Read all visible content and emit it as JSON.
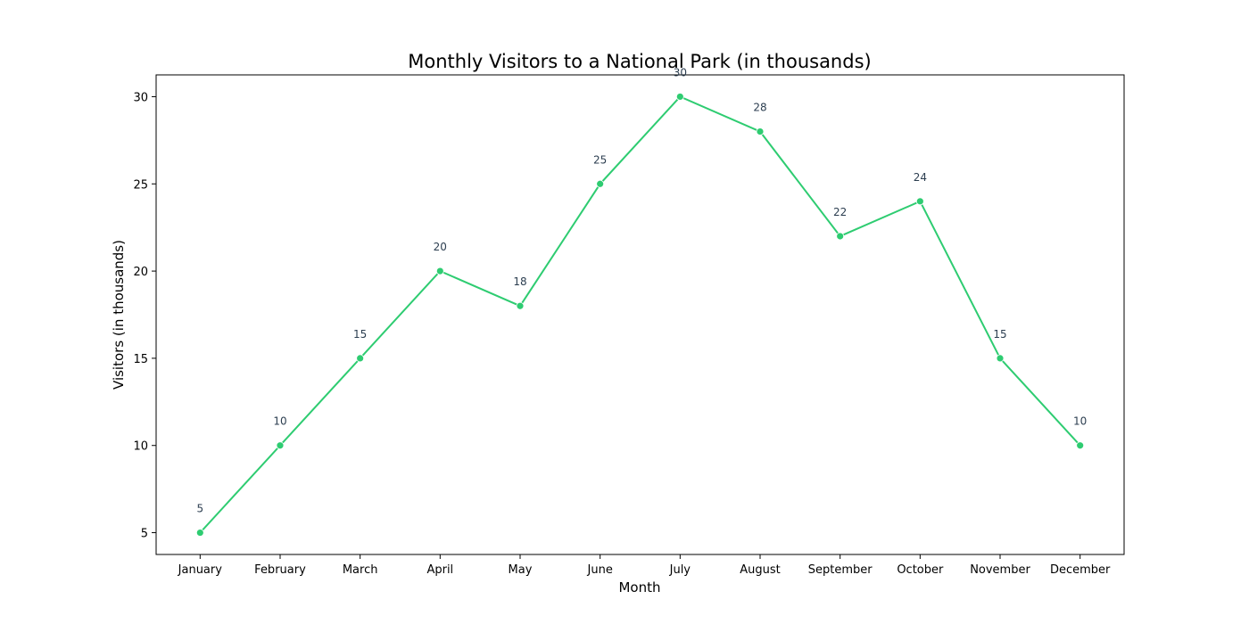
{
  "chart_data": {
    "type": "line",
    "title": "Monthly Visitors to a National Park (in thousands)",
    "xlabel": "Month",
    "ylabel": "Visitors (in thousands)",
    "categories": [
      "January",
      "February",
      "March",
      "April",
      "May",
      "June",
      "July",
      "August",
      "September",
      "October",
      "November",
      "December"
    ],
    "series": [
      {
        "name": "Visitors",
        "values": [
          5,
          10,
          15,
          20,
          18,
          25,
          30,
          28,
          22,
          24,
          15,
          10
        ]
      }
    ],
    "ylim": [
      3.75,
      31.25
    ],
    "yticks": [
      5,
      10,
      15,
      20,
      25,
      30
    ],
    "grid": false,
    "legend": "none",
    "colors": {
      "line": "#2ecc71",
      "marker": "#2ecc71",
      "data_label": "#2c3e50",
      "axis": "#000000"
    }
  }
}
